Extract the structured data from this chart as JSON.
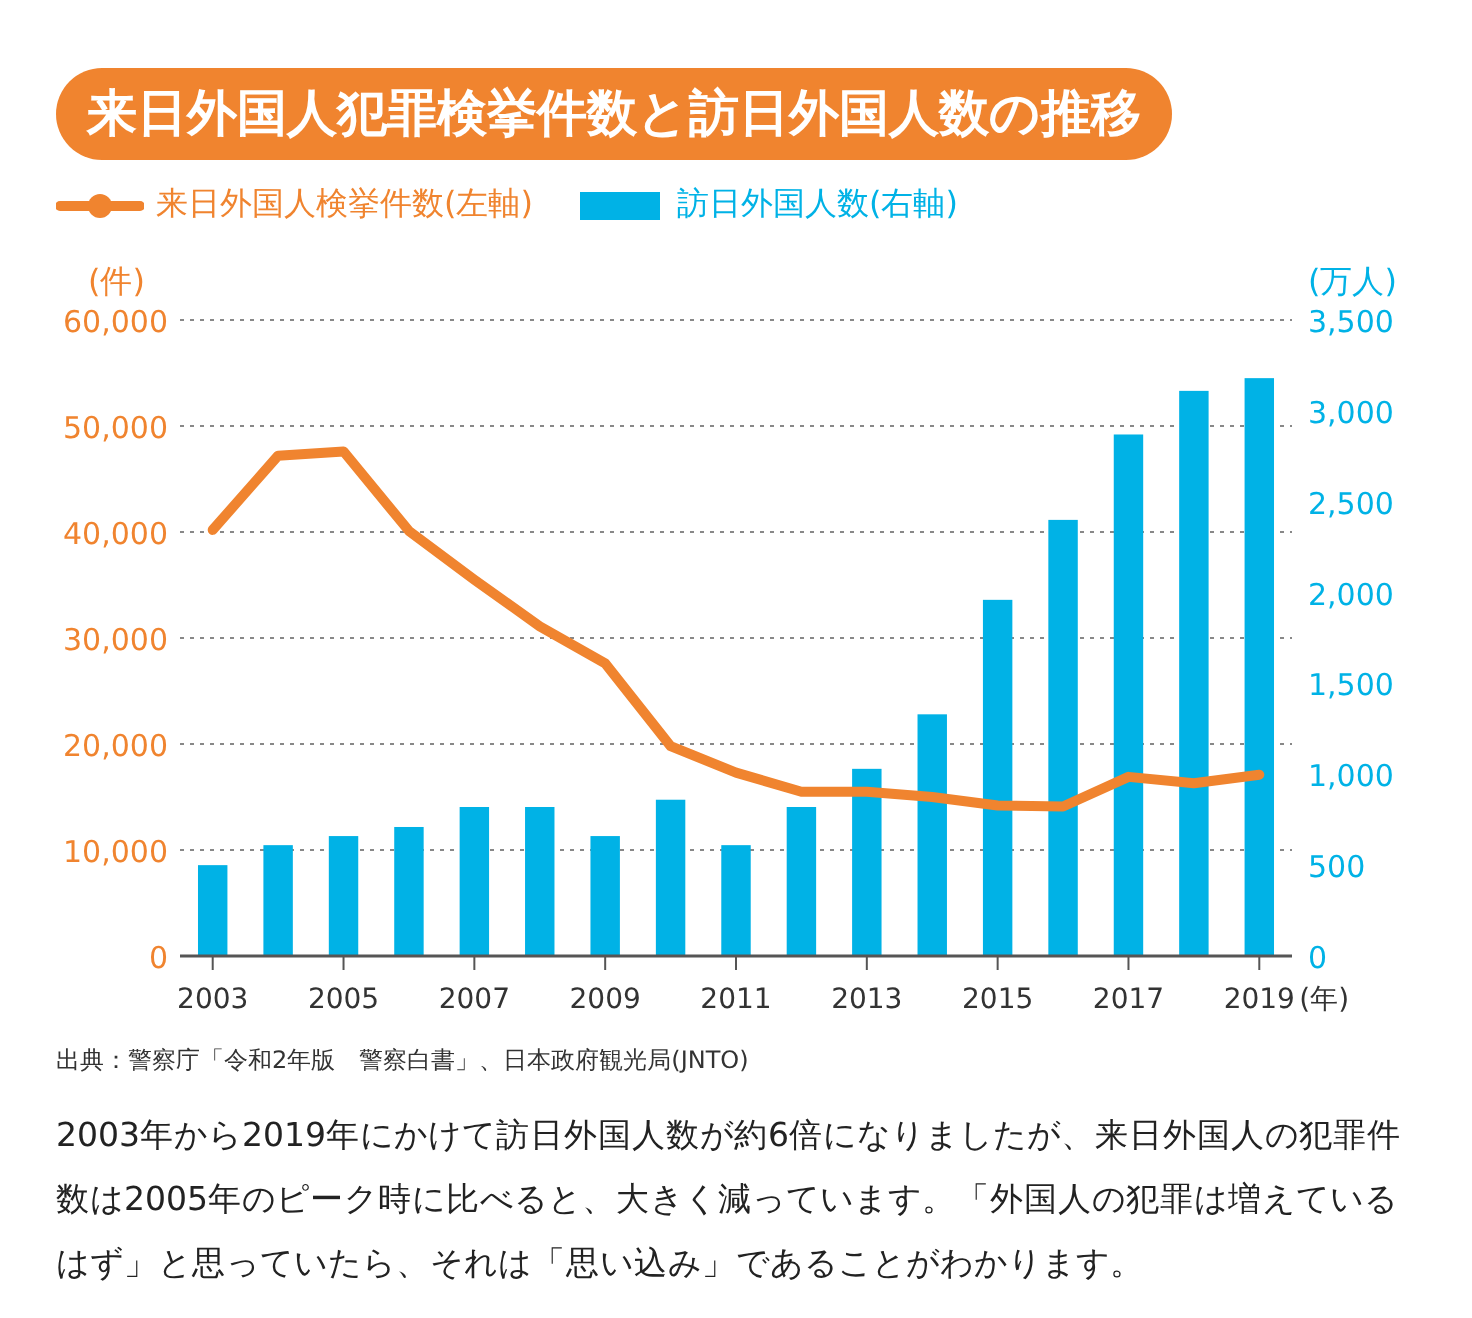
{
  "chart_data": {
    "type": "line",
    "title": "来日外国人犯罪検挙件数と訪日外国人数の推移",
    "x": [
      2003,
      2004,
      2005,
      2006,
      2007,
      2008,
      2009,
      2010,
      2011,
      2012,
      2013,
      2014,
      2015,
      2016,
      2017,
      2018,
      2019
    ],
    "series": [
      {
        "name": "来日外国人検挙件数(左軸)",
        "color": "#f0842f",
        "values": [
          40200,
          47200,
          47600,
          40100,
          35500,
          31100,
          27600,
          19800,
          17300,
          15500,
          15500,
          15000,
          14200,
          14100,
          16900,
          16300,
          17100
        ]
      },
      {
        "name": "訪日外国人数(右軸)",
        "type": "bar",
        "axis": "y2",
        "color": "#00b2e6",
        "values": [
          500,
          610,
          660,
          710,
          820,
          820,
          660,
          860,
          610,
          820,
          1030,
          1330,
          1960,
          2400,
          2870,
          3110,
          3180
        ]
      }
    ],
    "xlim": [
      2002.5,
      2019.5
    ],
    "xticks": [
      2003,
      2005,
      2007,
      2009,
      2011,
      2013,
      2015,
      2017,
      2019
    ],
    "xlabel": "(年)",
    "ylim": [
      0,
      60000
    ],
    "yticks": [
      0,
      {
        "value": 10000,
        "label": "10,000"
      },
      {
        "value": 20000,
        "label": "20,000"
      },
      {
        "value": 30000,
        "label": "30,000"
      },
      {
        "value": 40000,
        "label": "40,000"
      },
      {
        "value": 50000,
        "label": "50,000"
      },
      {
        "value": 60000,
        "label": "60,000"
      }
    ],
    "y2lim": [
      0,
      3500
    ],
    "y2ticks": [
      0,
      500,
      {
        "value": 1000,
        "label": "1,000"
      },
      {
        "value": 1500,
        "label": "1,500"
      },
      {
        "value": 2000,
        "label": "2,000"
      },
      {
        "value": 2500,
        "label": "2,500"
      },
      {
        "value": 3000,
        "label": "3,000"
      },
      {
        "value": 3500,
        "label": "3,500"
      }
    ],
    "ylabel": "(件)",
    "y2label": "(万人)",
    "grid": "y",
    "legend": "top left",
    "annotations": [
      "出典：警察庁「令和2年版　警察白書」、日本政府観光局(JNTO)",
      "2003年から2019年にかけて訪日外国人数が約6倍になりましたが、来日外国人の犯罪件数は2005年のピーク時に比べると、大きく減っています。「外国人の犯罪は増えているはず」と思っていたら、それは「思い込み」であることがわかります。"
    ]
  }
}
